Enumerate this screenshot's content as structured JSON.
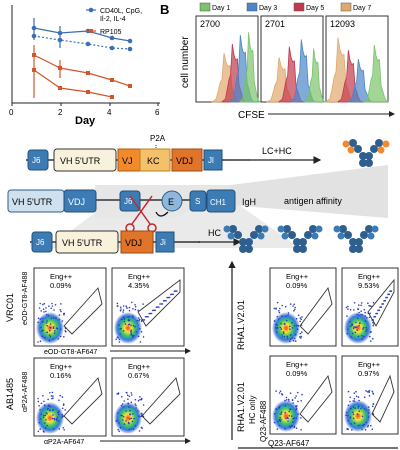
{
  "panelA": {
    "ylabel_partial": "% ...",
    "xlabel": "Day",
    "xticks": [
      "0",
      "2",
      "4",
      "6"
    ],
    "legend": [
      {
        "label": "CD40L, CpG,",
        "label2": "Il-2, IL-4",
        "color": "#3a6fb5"
      },
      {
        "label": "RP105",
        "label2": "",
        "color": "#d2552b"
      }
    ]
  },
  "panelB": {
    "letter": "B",
    "legend": [
      {
        "label": "Day 1",
        "color": "#7ac36a"
      },
      {
        "label": "Day 3",
        "color": "#4a86c8"
      },
      {
        "label": "Day 5",
        "color": "#c2384d"
      },
      {
        "label": "Day 7",
        "color": "#e0a86f"
      }
    ],
    "subpanels": [
      "2700",
      "2701",
      "12093"
    ],
    "ylabel": "cell number",
    "xlabel": "CFSE"
  },
  "construct": {
    "p2a_label": "P2A",
    "top_row": [
      "J6",
      "VH 5'UTR",
      "VJ",
      "KC",
      "VDJ",
      "Jl"
    ],
    "middle_row": [
      "VH 5'UTR",
      "VDJ",
      "J6",
      "E",
      "S",
      "CH1"
    ],
    "middle_row_end": "IgH",
    "bottom_row": [
      "J6",
      "VH 5'UTR",
      "VDJ",
      "Ji"
    ],
    "subscript_i": "i",
    "lc_hc_label": "LC+HC",
    "hc_label": "HC",
    "antigen_affinity_label": "antigen affinity"
  },
  "flow_left": {
    "row1_side_label": "VRC01",
    "row2_side_label": "AB1485",
    "row1_xlabel": "eOD-GT8-AF647",
    "row1_ylabel": "eOD-GT8-AF488",
    "row2_xlabel": "αP2A-AF647",
    "row2_ylabel": "αP2A-AF488",
    "gates": [
      {
        "label": "Eng++",
        "pct": "0.09%"
      },
      {
        "label": "Eng++",
        "pct": "4.35%"
      },
      {
        "label": "Eng++",
        "pct": "0.16%"
      },
      {
        "label": "Eng++",
        "pct": "0.67%"
      }
    ]
  },
  "flow_right": {
    "row1_side_label": "RHA1.V2.01",
    "row2_side_label": "RHA1.V2.01",
    "row2_side_label2": "HC only",
    "xlabel": "Q23-AF647",
    "ylabel": "Q23-AF488",
    "gates": [
      {
        "label": "Eng++",
        "pct": "0.09%"
      },
      {
        "label": "Eng++",
        "pct": "9.53%"
      },
      {
        "label": "Eng++",
        "pct": "0.09%"
      },
      {
        "label": "Eng++",
        "pct": "0.97%"
      }
    ]
  }
}
